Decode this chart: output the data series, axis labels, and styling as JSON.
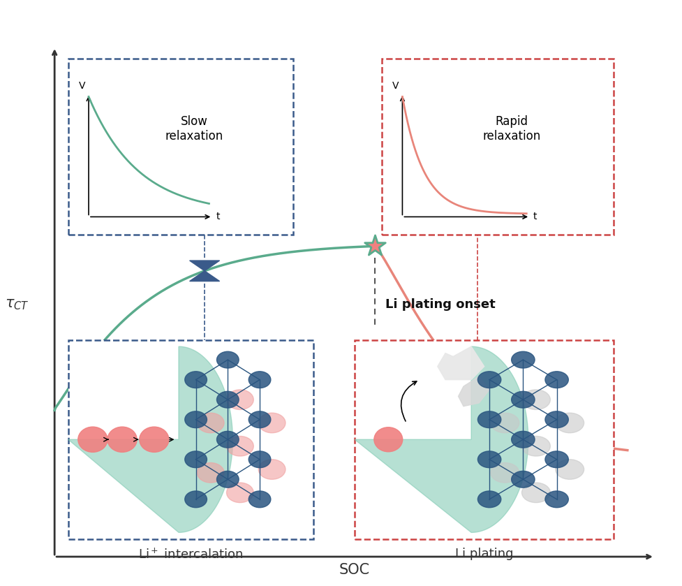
{
  "bg_color": "#ffffff",
  "green_color": "#5aab8c",
  "pink_color": "#e8857a",
  "blue_color": "#3a5a8a",
  "red_color": "#cc4444",
  "axis_color": "#333333",
  "bond_color": "#2a5580",
  "teal_blob": "#7bc8b0",
  "li_ion_color": "#f08080",
  "xlabel_text": "SOC",
  "ylabel_text": "$\\tau_{CT}$",
  "title_text": "Li plating onset",
  "slow_relax_label": "Slow\nrelaxation",
  "rapid_relax_label": "Rapid\nrelaxation",
  "li_intercal_label": "Li$^+$ intercalation",
  "li_plating_label": "Li plating",
  "inset_t_label": "t",
  "inset_v_label": "V"
}
